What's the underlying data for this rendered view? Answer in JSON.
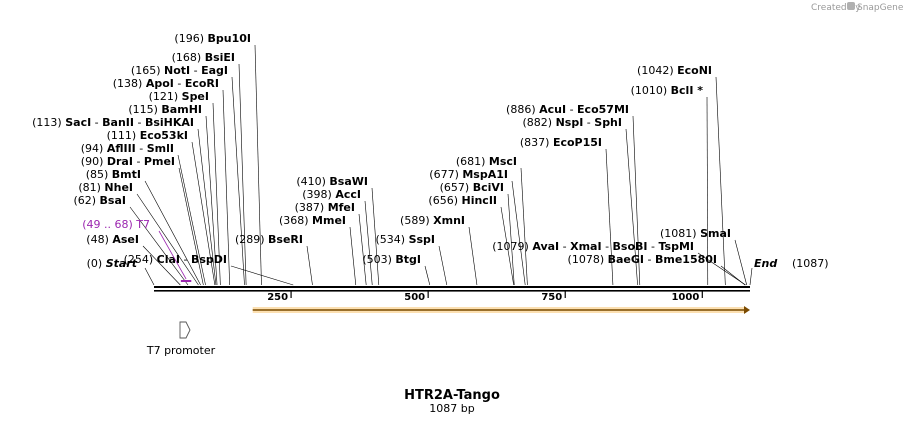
{
  "credit": {
    "text": "Created by",
    "brand": "SnapGene"
  },
  "title": "HTR2A-Tango",
  "length_label": "1087 bp",
  "sequence_length": 1087,
  "axis_ticks": [
    {
      "pos": 250,
      "label": "250"
    },
    {
      "pos": 500,
      "label": "500"
    },
    {
      "pos": 750,
      "label": "750"
    },
    {
      "pos": 1000,
      "label": "1000"
    }
  ],
  "start_marker": {
    "pos_label": "(0)",
    "name": "Start",
    "pos": 0
  },
  "end_marker": {
    "name": "End",
    "pos_label": "(1087)",
    "pos": 1087
  },
  "features": [
    {
      "name": "T7 promoter",
      "range_label": "(49 .. 68)",
      "short": "T7",
      "start": 49,
      "end": 68,
      "color": "#9c27b0"
    }
  ],
  "orf": {
    "start": 180,
    "end": 1087,
    "color": "#f5a623"
  },
  "sites": [
    {
      "pos": 48,
      "pos_label": "(48)",
      "names": [
        "AseI"
      ]
    },
    {
      "pos": 62,
      "pos_label": "(62)",
      "names": [
        "BsaI"
      ]
    },
    {
      "pos": 81,
      "pos_label": "(81)",
      "names": [
        "NheI"
      ]
    },
    {
      "pos": 85,
      "pos_label": "(85)",
      "names": [
        "BmtI"
      ]
    },
    {
      "pos": 90,
      "pos_label": "(90)",
      "names": [
        "DraI",
        "PmeI"
      ]
    },
    {
      "pos": 94,
      "pos_label": "(94)",
      "names": [
        "AflIII",
        "SmlI"
      ]
    },
    {
      "pos": 111,
      "pos_label": "(111)",
      "names": [
        "Eco53kI"
      ]
    },
    {
      "pos": 113,
      "pos_label": "(113)",
      "names": [
        "SacI",
        "BanII",
        "BsiHKAI"
      ]
    },
    {
      "pos": 115,
      "pos_label": "(115)",
      "names": [
        "BamHI"
      ]
    },
    {
      "pos": 121,
      "pos_label": "(121)",
      "names": [
        "SpeI"
      ]
    },
    {
      "pos": 138,
      "pos_label": "(138)",
      "names": [
        "ApoI",
        "EcoRI"
      ]
    },
    {
      "pos": 165,
      "pos_label": "(165)",
      "names": [
        "NotI",
        "EagI"
      ]
    },
    {
      "pos": 168,
      "pos_label": "(168)",
      "names": [
        "BsiEI"
      ]
    },
    {
      "pos": 196,
      "pos_label": "(196)",
      "names": [
        "Bpu10I"
      ]
    },
    {
      "pos": 254,
      "pos_label": "(254)",
      "names": [
        "ClaI",
        "BspDI"
      ]
    },
    {
      "pos": 289,
      "pos_label": "(289)",
      "names": [
        "BseRI"
      ]
    },
    {
      "pos": 368,
      "pos_label": "(368)",
      "names": [
        "MmeI"
      ]
    },
    {
      "pos": 387,
      "pos_label": "(387)",
      "names": [
        "MfeI"
      ]
    },
    {
      "pos": 398,
      "pos_label": "(398)",
      "names": [
        "AccI"
      ]
    },
    {
      "pos": 410,
      "pos_label": "(410)",
      "names": [
        "BsaWI"
      ]
    },
    {
      "pos": 503,
      "pos_label": "(503)",
      "names": [
        "BtgI"
      ]
    },
    {
      "pos": 534,
      "pos_label": "(534)",
      "names": [
        "SspI"
      ]
    },
    {
      "pos": 589,
      "pos_label": "(589)",
      "names": [
        "XmnI"
      ]
    },
    {
      "pos": 656,
      "pos_label": "(656)",
      "names": [
        "HincII"
      ]
    },
    {
      "pos": 657,
      "pos_label": "(657)",
      "names": [
        "BciVI"
      ]
    },
    {
      "pos": 677,
      "pos_label": "(677)",
      "names": [
        "MspA1I"
      ]
    },
    {
      "pos": 681,
      "pos_label": "(681)",
      "names": [
        "MscI"
      ]
    },
    {
      "pos": 837,
      "pos_label": "(837)",
      "names": [
        "EcoP15I"
      ]
    },
    {
      "pos": 882,
      "pos_label": "(882)",
      "names": [
        "NspI",
        "SphI"
      ]
    },
    {
      "pos": 886,
      "pos_label": "(886)",
      "names": [
        "AcuI",
        "Eco57MI"
      ]
    },
    {
      "pos": 1010,
      "pos_label": "(1010)",
      "names": [
        "BclI *"
      ]
    },
    {
      "pos": 1042,
      "pos_label": "(1042)",
      "names": [
        "EcoNI"
      ]
    },
    {
      "pos": 1078,
      "pos_label": "(1078)",
      "names": [
        "BaeGI",
        "Bme1580I"
      ]
    },
    {
      "pos": 1079,
      "pos_label": "(1079)",
      "names": [
        "AvaI",
        "XmaI",
        "BsoBI",
        "TspMI"
      ]
    },
    {
      "pos": 1081,
      "pos_label": "(1081)",
      "names": [
        "SmaI"
      ]
    }
  ]
}
